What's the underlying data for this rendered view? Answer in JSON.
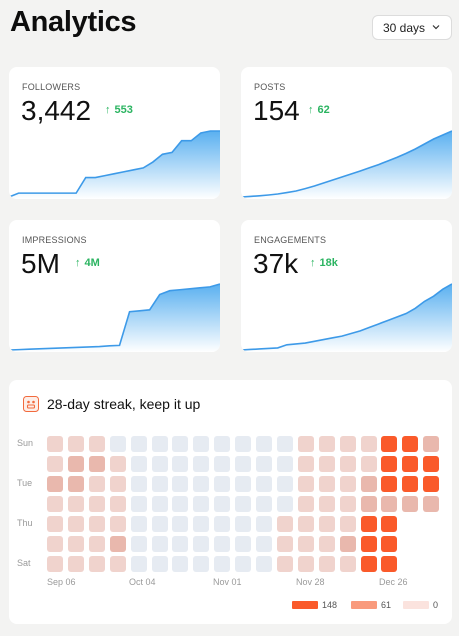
{
  "page": {
    "title": "Analytics"
  },
  "range_select": {
    "value": "30 days",
    "icon": "chevron-down-icon"
  },
  "metrics": [
    {
      "label": "FOLLOWERS",
      "value": "3,442",
      "delta": "553",
      "arrow": "↑",
      "series": [
        0,
        2,
        2,
        2,
        2,
        2,
        2,
        2,
        10,
        10,
        11,
        12,
        13,
        14,
        15,
        18,
        22,
        23,
        29,
        29,
        33,
        34,
        34
      ]
    },
    {
      "label": "POSTS",
      "value": "154",
      "delta": "62",
      "arrow": "↑",
      "series": [
        0,
        0.3,
        0.6,
        1,
        1.5,
        2.2,
        3,
        4.2,
        5.5,
        7,
        8.5,
        10,
        11.5,
        13,
        14.6,
        16.2,
        18,
        19.8,
        21.8,
        24,
        26.5,
        29,
        31,
        33
      ]
    },
    {
      "label": "IMPRESSIONS",
      "value": "5M",
      "delta": "4M",
      "arrow": "↑",
      "series": [
        0,
        0.2,
        0.4,
        0.6,
        0.8,
        1,
        1.2,
        1.4,
        1.6,
        1.8,
        2.2,
        2.4,
        20,
        20.5,
        21,
        29,
        31,
        31.5,
        32,
        32.5,
        33,
        34.5
      ]
    },
    {
      "label": "ENGAGEMENTS",
      "value": "37k",
      "delta": "18k",
      "arrow": "↑",
      "series": [
        0,
        0.3,
        0.6,
        0.9,
        1.2,
        3,
        3.5,
        4,
        5,
        6,
        7,
        8,
        9.5,
        11,
        13,
        15,
        17,
        19,
        21,
        24,
        28,
        31,
        35,
        38
      ]
    }
  ],
  "colors": {
    "accent": "#3d9ae8",
    "spark_fill_top": "#5ab0f0",
    "positive": "#2bb461"
  },
  "streak": {
    "title": "28-day streak, keep it up",
    "icon": "streak-badge-icon",
    "day_labels": [
      "Sun",
      "Tue",
      "Thu",
      "Sat"
    ],
    "month_labels": [
      "Sep 06",
      "Oct 04",
      "Nov 01",
      "Nov 28",
      "Dec 26"
    ],
    "grid": [
      [
        1,
        1,
        1,
        0,
        0,
        0,
        0,
        0,
        0,
        0,
        0,
        0,
        1,
        1,
        1,
        1,
        3,
        3,
        2
      ],
      [
        1,
        2,
        2,
        1,
        0,
        0,
        0,
        0,
        0,
        0,
        0,
        0,
        1,
        1,
        1,
        1,
        3,
        3,
        3
      ],
      [
        2,
        2,
        1,
        1,
        0,
        0,
        0,
        0,
        0,
        0,
        0,
        0,
        1,
        1,
        1,
        2,
        3,
        3,
        3
      ],
      [
        1,
        1,
        1,
        1,
        0,
        0,
        0,
        0,
        0,
        0,
        0,
        0,
        1,
        1,
        1,
        2,
        2,
        2,
        2
      ],
      [
        1,
        1,
        1,
        1,
        0,
        0,
        0,
        0,
        0,
        0,
        0,
        1,
        1,
        1,
        1,
        3,
        3,
        -1,
        -1
      ],
      [
        1,
        1,
        1,
        2,
        0,
        0,
        0,
        0,
        0,
        0,
        0,
        1,
        1,
        1,
        2,
        3,
        3,
        -1,
        -1
      ],
      [
        1,
        1,
        1,
        1,
        0,
        0,
        0,
        0,
        0,
        0,
        0,
        1,
        1,
        1,
        1,
        3,
        3,
        -1,
        -1
      ]
    ],
    "legend": [
      {
        "value": "148",
        "color": "#fa5a2a"
      },
      {
        "value": "61",
        "color": "#f99a7c"
      },
      {
        "value": "0",
        "color": "#fbe3de"
      }
    ]
  }
}
